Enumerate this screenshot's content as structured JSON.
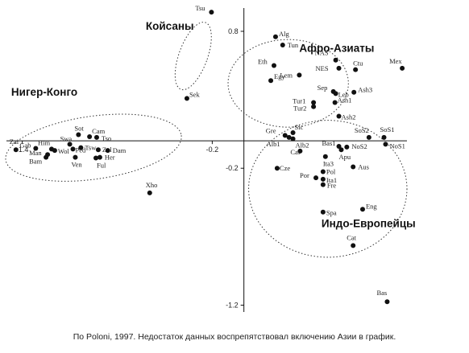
{
  "caption": "По Poloni, 1997. Недостаток данных воспрепятствовал включению Азии в график.",
  "chart_data": {
    "type": "scatter",
    "title": "",
    "xlabel": "",
    "ylabel": "",
    "xlim": [
      -1.5,
      1.03
    ],
    "ylim": [
      -1.25,
      0.97
    ],
    "axis_cross": [
      0,
      0
    ],
    "x_ticks": [
      {
        "value": -1.4,
        "label": "-1.4"
      },
      {
        "value": -0.2,
        "label": "-0.2"
      }
    ],
    "y_ticks": [
      {
        "value": 0.8,
        "label": "0.8"
      },
      {
        "value": -0.2,
        "label": "-0.2"
      },
      {
        "value": -1.2,
        "label": "-1.2"
      }
    ],
    "grid": false,
    "groups": [
      {
        "label": "Койсаны",
        "center": [
          -0.32,
          0.62
        ],
        "radii": [
          0.09,
          0.26
        ],
        "rotate": 20,
        "label_at": [
          -0.62,
          0.81
        ]
      },
      {
        "label": "Нигер-Конго",
        "center": [
          -0.95,
          -0.05
        ],
        "radii": [
          0.56,
          0.23
        ],
        "rotate": -8,
        "label_at": [
          -1.47,
          0.33
        ]
      },
      {
        "label": "Афро-Азиаты",
        "center": [
          0.28,
          0.42
        ],
        "radii": [
          0.38,
          0.32
        ],
        "rotate": 0,
        "label_at": [
          0.35,
          0.65
        ]
      },
      {
        "label": "Индо-Европейцы",
        "center": [
          0.53,
          -0.35
        ],
        "radii": [
          0.5,
          0.5
        ],
        "rotate": 0,
        "label_at": [
          0.49,
          -0.63
        ]
      }
    ],
    "points": [
      {
        "label": "Tsu",
        "x": -0.205,
        "y": 0.94,
        "dx": -20,
        "dy": -2
      },
      {
        "label": "Sek",
        "x": -0.36,
        "y": 0.31,
        "dx": 3,
        "dy": -2
      },
      {
        "label": "Xho",
        "x": -0.595,
        "y": -0.38,
        "dx": -5,
        "dy": -7
      },
      {
        "label": "Zai",
        "x": -1.44,
        "y": -0.065,
        "dx": -8,
        "dy": -7
      },
      {
        "label": "Gab",
        "x": -1.315,
        "y": -0.055,
        "dx": -20,
        "dy": -1
      },
      {
        "label": "Him",
        "x": -1.215,
        "y": -0.06,
        "dx": -17,
        "dy": -5
      },
      {
        "label": "Man",
        "x": -1.24,
        "y": -0.1,
        "dx": -23,
        "dy": 1
      },
      {
        "label": "Bam",
        "x": -1.25,
        "y": -0.12,
        "dx": -21,
        "dy": 8
      },
      {
        "label": "Wol",
        "x": -1.195,
        "y": -0.07,
        "dx": 4,
        "dy": 4
      },
      {
        "label": "Sot",
        "x": -1.045,
        "y": 0.045,
        "dx": -5,
        "dy": -5
      },
      {
        "label": "Swa",
        "x": -1.1,
        "y": -0.025,
        "dx": -12,
        "dy": -4
      },
      {
        "label": "Cam",
        "x": -0.975,
        "y": 0.03,
        "dx": 3,
        "dy": -4
      },
      {
        "label": "Tso",
        "x": -0.93,
        "y": 0.025,
        "dx": 6,
        "dy": 4
      },
      {
        "label": "Ped",
        "x": -1.08,
        "y": -0.06,
        "dx": 3,
        "dy": 4
      },
      {
        "label": "Tsw",
        "x": -1.03,
        "y": -0.05,
        "dx": 5,
        "dy": 3
      },
      {
        "label": "Zul",
        "x": -0.92,
        "y": -0.065,
        "dx": 5,
        "dy": 3
      },
      {
        "label": "Dam",
        "x": -0.86,
        "y": -0.07,
        "dx": 6,
        "dy": 3
      },
      {
        "label": "Her",
        "x": -0.91,
        "y": -0.12,
        "dx": 6,
        "dy": 3
      },
      {
        "label": "Ven",
        "x": -1.065,
        "y": -0.12,
        "dx": -5,
        "dy": 12
      },
      {
        "label": "Ful",
        "x": -0.935,
        "y": -0.125,
        "dx": 1,
        "dy": 12
      },
      {
        "label": "Alg",
        "x": 0.2,
        "y": 0.76,
        "dx": 4,
        "dy": -1
      },
      {
        "label": "Tun",
        "x": 0.245,
        "y": 0.7,
        "dx": 6,
        "dy": 3
      },
      {
        "label": "Eth",
        "x": 0.19,
        "y": 0.55,
        "dx": -20,
        "dy": -2
      },
      {
        "label": "Egy",
        "x": 0.17,
        "y": 0.44,
        "dx": 4,
        "dy": -2
      },
      {
        "label": "Lem",
        "x": 0.35,
        "y": 0.48,
        "dx": -24,
        "dy": 3
      },
      {
        "label": "NAS",
        "x": 0.58,
        "y": 0.59,
        "dx": -26,
        "dy": -6
      },
      {
        "label": "NES",
        "x": 0.6,
        "y": 0.53,
        "dx": -29,
        "dy": 3
      },
      {
        "label": "Ctu",
        "x": 0.705,
        "y": 0.52,
        "dx": -3,
        "dy": -5
      },
      {
        "label": "Mex",
        "x": 1.0,
        "y": 0.53,
        "dx": -16,
        "dy": -6
      },
      {
        "label": "Ash3",
        "x": 0.695,
        "y": 0.355,
        "dx": 5,
        "dy": 0
      },
      {
        "label": "Sep",
        "x": 0.565,
        "y": 0.36,
        "dx": -20,
        "dy": -2
      },
      {
        "label": "Leb",
        "x": 0.58,
        "y": 0.345,
        "dx": 3,
        "dy": 4
      },
      {
        "label": "Tur1",
        "x": 0.44,
        "y": 0.28,
        "dx": -26,
        "dy": 1
      },
      {
        "label": "Ash1",
        "x": 0.575,
        "y": 0.28,
        "dx": 3,
        "dy": 0
      },
      {
        "label": "Tur2",
        "x": 0.44,
        "y": 0.25,
        "dx": -25,
        "dy": 5
      },
      {
        "label": "Ash2",
        "x": 0.6,
        "y": 0.18,
        "dx": 3,
        "dy": 4
      },
      {
        "label": "Gre",
        "x": 0.26,
        "y": 0.04,
        "dx": -24,
        "dy": -3
      },
      {
        "label": "Sic",
        "x": 0.31,
        "y": 0.06,
        "dx": 2,
        "dy": -4
      },
      {
        "label": "Alb1",
        "x": 0.285,
        "y": 0.025,
        "dx": -28,
        "dy": 11
      },
      {
        "label": "Alb2",
        "x": 0.31,
        "y": 0.015,
        "dx": 3,
        "dy": 11
      },
      {
        "label": "Cal",
        "x": 0.355,
        "y": -0.075,
        "dx": -12,
        "dy": 4
      },
      {
        "label": "SoS2",
        "x": 0.79,
        "y": 0.025,
        "dx": -18,
        "dy": -6
      },
      {
        "label": "SoS1",
        "x": 0.885,
        "y": 0.025,
        "dx": -5,
        "dy": -7
      },
      {
        "label": "NoS1",
        "x": 0.895,
        "y": -0.025,
        "dx": 5,
        "dy": 5
      },
      {
        "label": "NoS2",
        "x": 0.65,
        "y": -0.045,
        "dx": 6,
        "dy": 2
      },
      {
        "label": "Bas1",
        "x": 0.6,
        "y": -0.04,
        "dx": -21,
        "dy": -1
      },
      {
        "label": "Apu",
        "x": 0.615,
        "y": -0.065,
        "dx": -3,
        "dy": 12
      },
      {
        "label": "Ita3",
        "x": 0.515,
        "y": -0.115,
        "dx": -3,
        "dy": 12
      },
      {
        "label": "Cze",
        "x": 0.21,
        "y": -0.2,
        "dx": 3,
        "dy": 3
      },
      {
        "label": "Pol",
        "x": 0.5,
        "y": -0.225,
        "dx": 4,
        "dy": 3
      },
      {
        "label": "Aus",
        "x": 0.69,
        "y": -0.19,
        "dx": 6,
        "dy": 3
      },
      {
        "label": "Por",
        "x": 0.455,
        "y": -0.27,
        "dx": -20,
        "dy": 0
      },
      {
        "label": "Ita1",
        "x": 0.5,
        "y": -0.28,
        "dx": 4,
        "dy": 4
      },
      {
        "label": "Fre",
        "x": 0.5,
        "y": -0.32,
        "dx": 5,
        "dy": 4
      },
      {
        "label": "Eng",
        "x": 0.75,
        "y": -0.5,
        "dx": 4,
        "dy": -1
      },
      {
        "label": "Spa",
        "x": 0.5,
        "y": -0.52,
        "dx": 4,
        "dy": 4
      },
      {
        "label": "Cat",
        "x": 0.69,
        "y": -0.765,
        "dx": -8,
        "dy": -7
      },
      {
        "label": "Bas",
        "x": 0.905,
        "y": -1.175,
        "dx": -13,
        "dy": -8
      }
    ]
  }
}
